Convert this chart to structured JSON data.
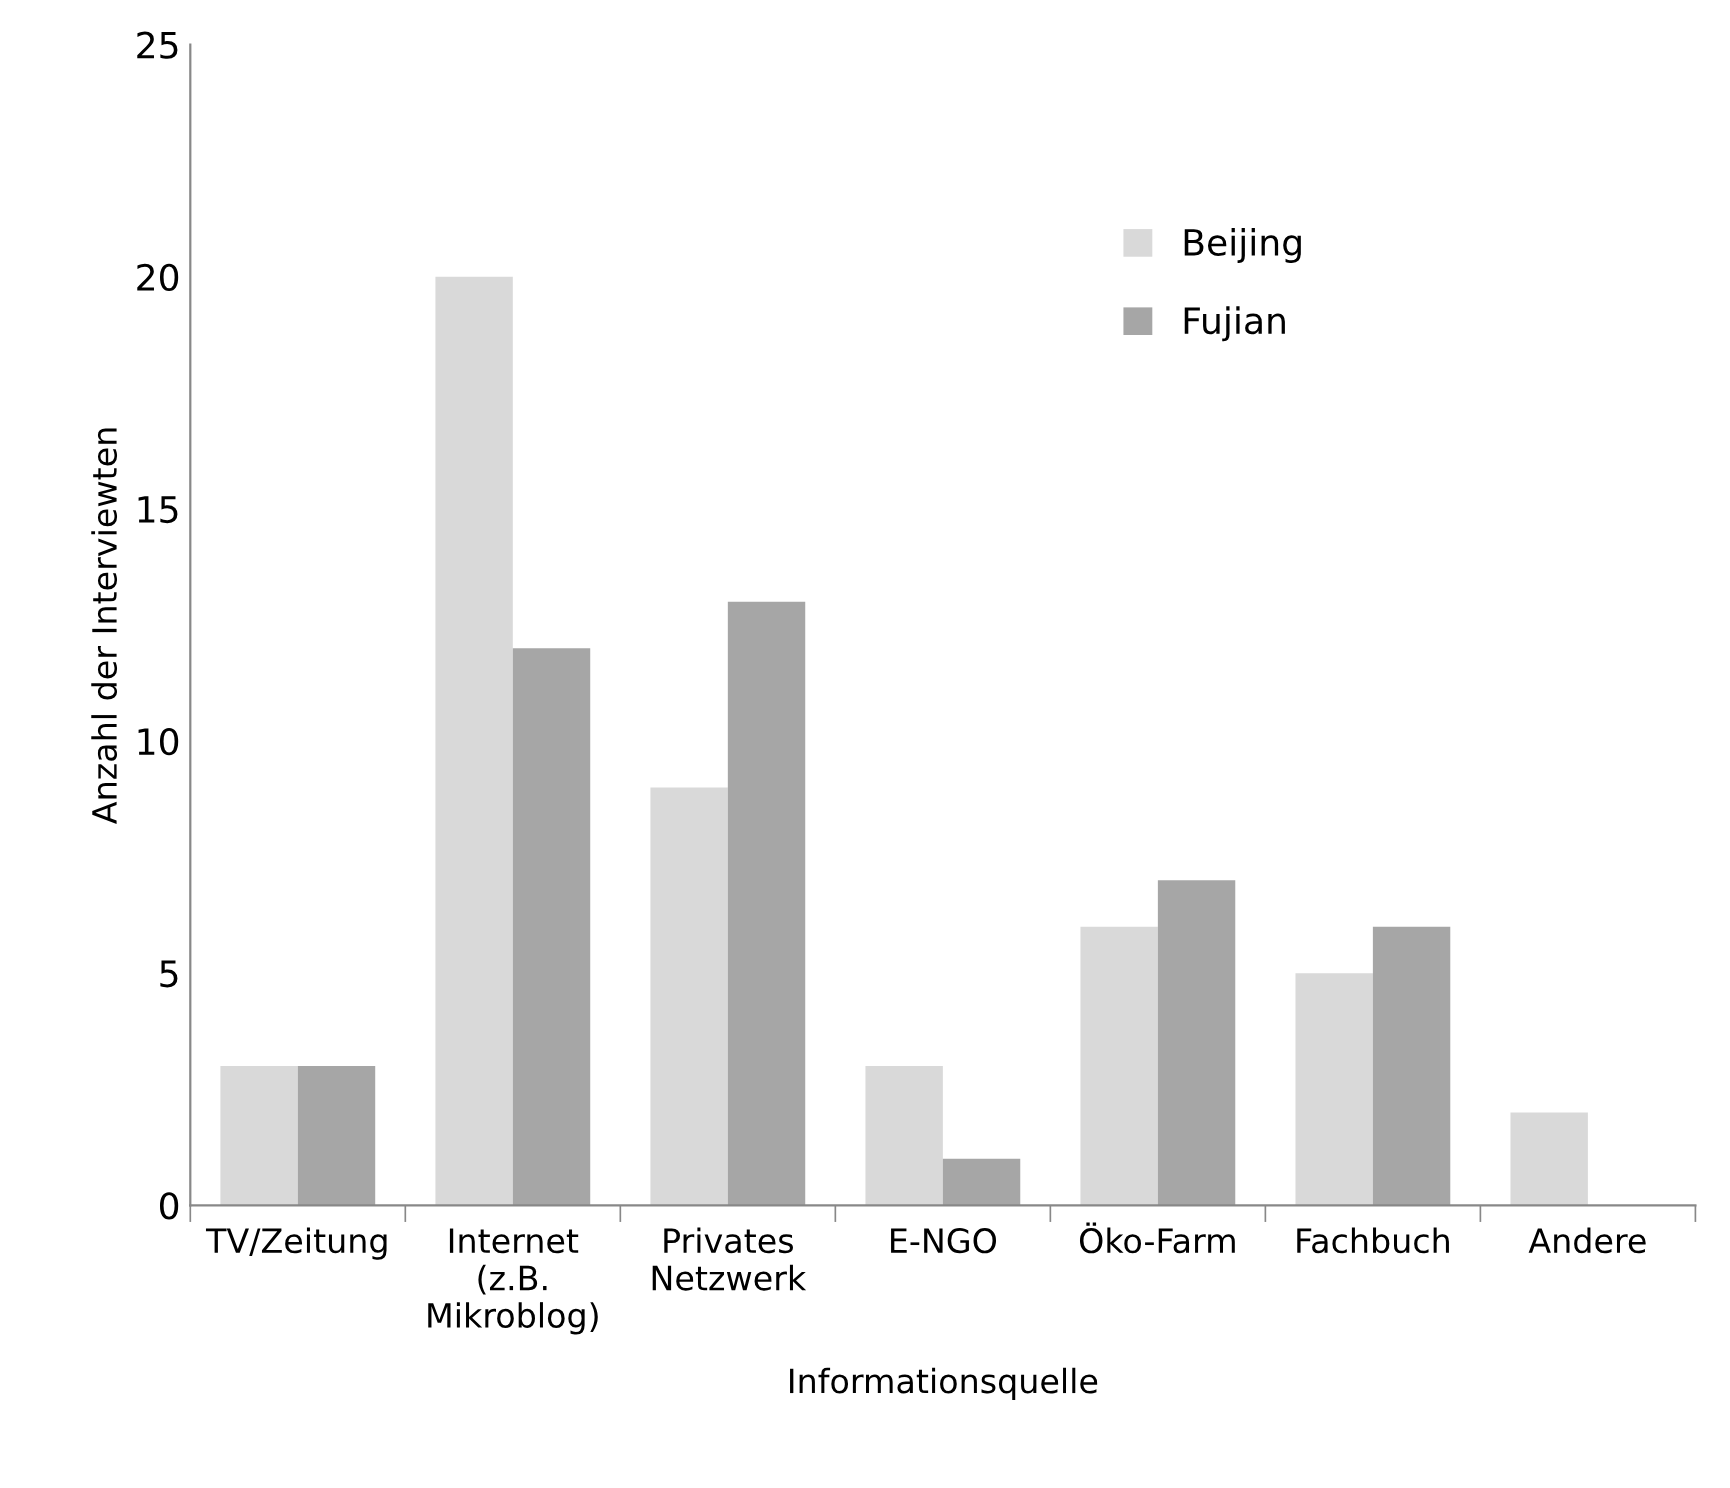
{
  "chart_data": {
    "type": "bar",
    "xlabel": "Informationsquelle",
    "ylabel": "Anzahl der Interviewten",
    "categories": [
      "TV/Zeitung",
      "Internet\n(z.B.\nMikroblog)",
      "Privates\nNetzwerk",
      "E-NGO",
      "Öko-Farm",
      "Fachbuch",
      "Andere"
    ],
    "series": [
      {
        "name": "Beijing",
        "color": "#d9d9d9",
        "values": [
          3,
          20,
          9,
          3,
          6,
          5,
          2
        ]
      },
      {
        "name": "Fujian",
        "color": "#a6a6a6",
        "values": [
          3,
          12,
          13,
          1,
          7,
          6,
          null
        ]
      }
    ],
    "ylim": [
      0,
      25
    ],
    "yticks": [
      0,
      5,
      10,
      15,
      20,
      25
    ],
    "grid": false,
    "legend": "top"
  }
}
